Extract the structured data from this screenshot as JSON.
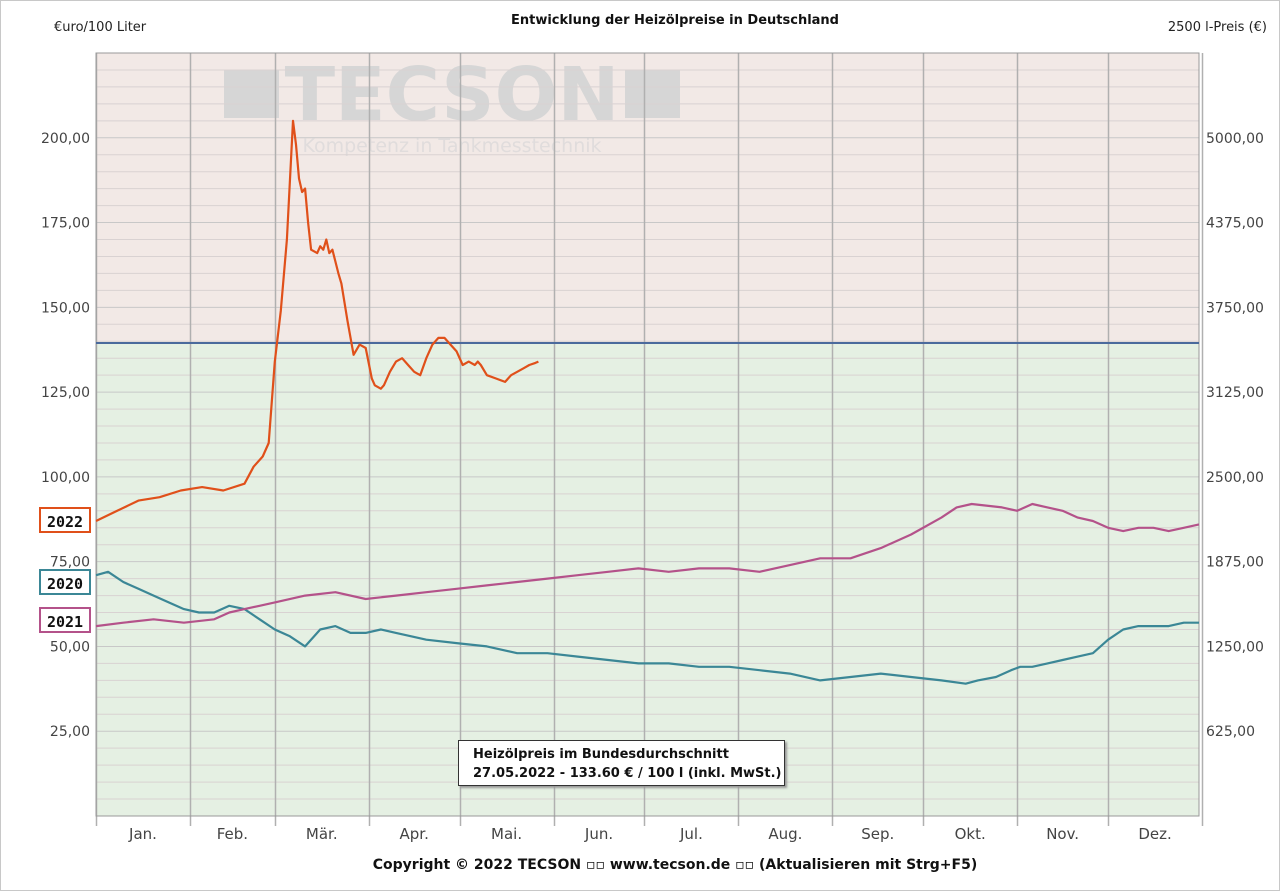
{
  "header": {
    "title": "Entwicklung der Heizölpreise in Deutschland",
    "unit_left": "€uro/100 Liter",
    "unit_right": "2500 l-Preis (€)"
  },
  "watermark": {
    "brand": "TECSON",
    "tagline": "Kompetenz in Tankmesstechnik"
  },
  "footer": {
    "copyright": "Copyright © 2022 TECSON ▫▫ www.tecson.de ▫▫ (Aktualisieren mit Strg+F5)"
  },
  "infobox": {
    "line1": "Heizölpreis im Bundesdurchschnitt",
    "line2": "27.05.2022 - 133.60 € / 100 l (inkl. MwSt.)"
  },
  "legend": [
    {
      "label": "2022",
      "color": "#e0501a"
    },
    {
      "label": "2020",
      "color": "#3b8796"
    },
    {
      "label": "2021",
      "color": "#b4528a"
    }
  ],
  "colors": {
    "upper_band": "#f2e9e6",
    "lower_band": "#e5f0e3",
    "reference_line": "#4a6a9c"
  },
  "chart_data": {
    "type": "line",
    "title": "Entwicklung der Heizölpreise in Deutschland",
    "ylabel_left": "€uro/100 Liter",
    "ylabel_right": "2500 l-Preis (€)",
    "ylim": [
      0,
      225
    ],
    "y2lim": [
      0,
      5625
    ],
    "y_ticks_left": [
      "25,00",
      "50,00",
      "75,00",
      "100,00",
      "125,00",
      "150,00",
      "175,00",
      "200,00"
    ],
    "y_ticks_right": [
      "625,00",
      "1250,00",
      "1875,00",
      "2500,00",
      "3125,00",
      "3750,00",
      "4375,00",
      "5000,00"
    ],
    "months": [
      "Jan.",
      "Feb.",
      "Mär.",
      "Apr.",
      "Mai.",
      "Jun.",
      "Jul.",
      "Aug.",
      "Sep.",
      "Okt.",
      "Nov.",
      "Dez."
    ],
    "reference_line": 139.5,
    "grid": true,
    "series": [
      {
        "name": "2022",
        "color": "#e0501a",
        "x": [
          1,
          8,
          15,
          22,
          29,
          36,
          43,
          50,
          53,
          56,
          58,
          60,
          62,
          64,
          66,
          67,
          68,
          69,
          70,
          71,
          72,
          74,
          75,
          76,
          77,
          78,
          79,
          81,
          82,
          84,
          86,
          88,
          90,
          92,
          93,
          95,
          96,
          98,
          100,
          102,
          104,
          106,
          108,
          110,
          112,
          114,
          116,
          118,
          120,
          122,
          124,
          126,
          127,
          128,
          130,
          133,
          136,
          138,
          140,
          142,
          144,
          146,
          147
        ],
        "values": [
          87,
          90,
          93,
          94,
          96,
          97,
          96,
          98,
          103,
          106,
          110,
          134,
          149,
          170,
          205,
          198,
          188,
          184,
          185,
          175,
          167,
          166,
          168,
          167,
          170,
          166,
          167,
          160,
          157,
          146,
          136,
          139,
          138,
          129,
          127,
          126,
          127,
          131,
          134,
          135,
          133,
          131,
          130,
          135,
          139,
          141,
          141,
          139,
          137,
          133,
          134,
          133,
          134,
          133,
          130,
          129,
          128,
          130,
          131,
          132,
          133,
          133.6,
          134
        ]
      },
      {
        "name": "2020",
        "color": "#3b8796",
        "x": [
          1,
          5,
          10,
          15,
          20,
          25,
          30,
          35,
          40,
          45,
          50,
          55,
          60,
          65,
          70,
          75,
          80,
          85,
          90,
          95,
          100,
          110,
          120,
          130,
          140,
          150,
          160,
          170,
          180,
          190,
          200,
          210,
          220,
          230,
          240,
          250,
          260,
          270,
          280,
          288,
          292,
          298,
          303,
          306,
          310,
          315,
          320,
          325,
          330,
          335,
          340,
          345,
          350,
          355,
          360,
          365
        ],
        "values": [
          71,
          72,
          69,
          67,
          65,
          63,
          61,
          60,
          60,
          62,
          61,
          58,
          55,
          53,
          50,
          55,
          56,
          54,
          54,
          55,
          54,
          52,
          51,
          50,
          48,
          48,
          47,
          46,
          45,
          45,
          44,
          44,
          43,
          42,
          40,
          41,
          42,
          41,
          40,
          39,
          40,
          41,
          43,
          44,
          44,
          45,
          46,
          47,
          48,
          52,
          55,
          56,
          56,
          56,
          57,
          57
        ]
      },
      {
        "name": "2021",
        "color": "#b4528a",
        "x": [
          1,
          10,
          20,
          30,
          40,
          45,
          50,
          55,
          60,
          70,
          80,
          90,
          100,
          110,
          120,
          130,
          140,
          150,
          160,
          170,
          180,
          190,
          200,
          210,
          220,
          230,
          240,
          250,
          260,
          270,
          280,
          285,
          290,
          300,
          305,
          310,
          315,
          320,
          325,
          330,
          335,
          340,
          345,
          350,
          355,
          360,
          365
        ],
        "values": [
          56,
          57,
          58,
          57,
          58,
          60,
          61,
          62,
          63,
          65,
          66,
          64,
          65,
          66,
          67,
          68,
          69,
          70,
          71,
          72,
          73,
          72,
          73,
          73,
          72,
          74,
          76,
          76,
          79,
          83,
          88,
          91,
          92,
          91,
          90,
          92,
          91,
          90,
          88,
          87,
          85,
          84,
          85,
          85,
          84,
          85,
          86
        ]
      }
    ]
  }
}
